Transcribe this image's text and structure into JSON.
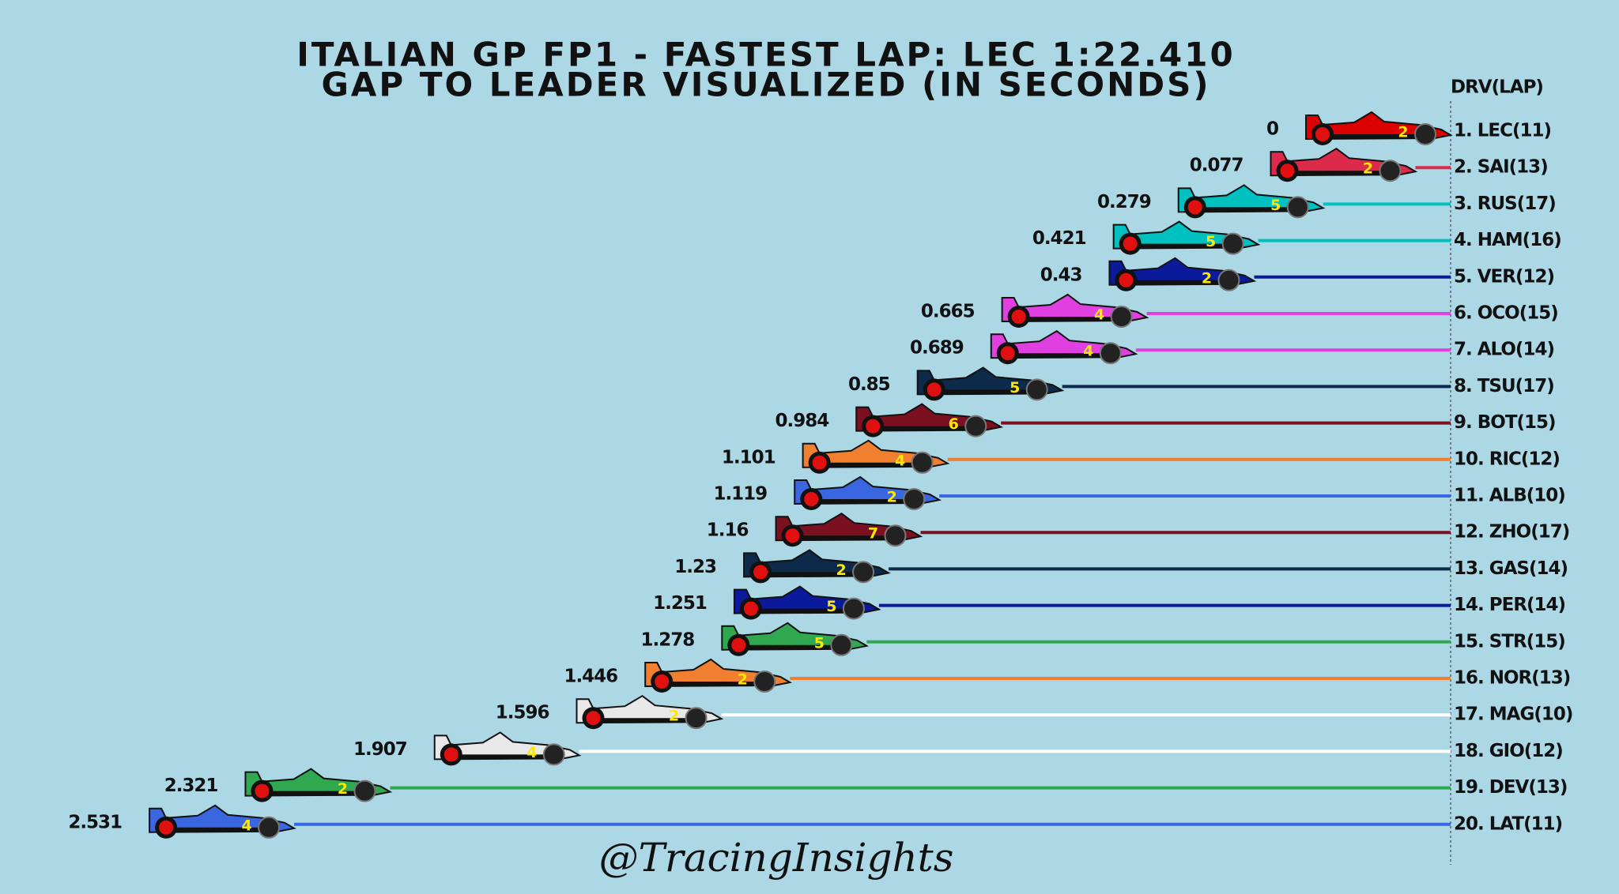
{
  "chart_data": {
    "type": "gap",
    "title": "ITALIAN GP FP1 - FASTEST LAP: LEC 1:22.410",
    "subtitle": "GAP TO LEADER VISUALIZED (IN SECONDS)",
    "y_header": "DRV(LAP)",
    "credit": "@TracingInsights",
    "categories": [
      "1. LEC(11)",
      "2. SAI(13)",
      "3. RUS(17)",
      "4. HAM(16)",
      "5. VER(12)",
      "6. OCO(15)",
      "7. ALO(14)",
      "8. TSU(17)",
      "9. BOT(15)",
      "10. RIC(12)",
      "11. ALB(10)",
      "12. ZHO(17)",
      "13. GAS(14)",
      "14. PER(14)",
      "15. STR(15)",
      "16. NOR(13)",
      "17. MAG(10)",
      "18. GIO(12)",
      "19. DEV(13)",
      "20. LAT(11)"
    ],
    "values": [
      0,
      0.077,
      0.279,
      0.421,
      0.43,
      0.665,
      0.689,
      0.85,
      0.984,
      1.101,
      1.119,
      1.16,
      1.23,
      1.251,
      1.278,
      1.446,
      1.596,
      1.907,
      2.321,
      2.531
    ],
    "colors": [
      "#dc0000",
      "#dc2a4a",
      "#00c0c0",
      "#00c0c0",
      "#0a1a9a",
      "#e040e0",
      "#e040e0",
      "#0d2a4a",
      "#7a1020",
      "#f08030",
      "#3a66e0",
      "#7a1020",
      "#0d2a4a",
      "#0a1a9a",
      "#30a850",
      "#f08030",
      "#ffffff",
      "#ffffff",
      "#30a850",
      "#3a66e0"
    ],
    "car_labels": [
      2,
      2,
      5,
      5,
      2,
      4,
      4,
      5,
      6,
      4,
      2,
      7,
      2,
      5,
      5,
      2,
      2,
      4,
      2,
      4
    ],
    "xlim": [
      0,
      3
    ]
  }
}
